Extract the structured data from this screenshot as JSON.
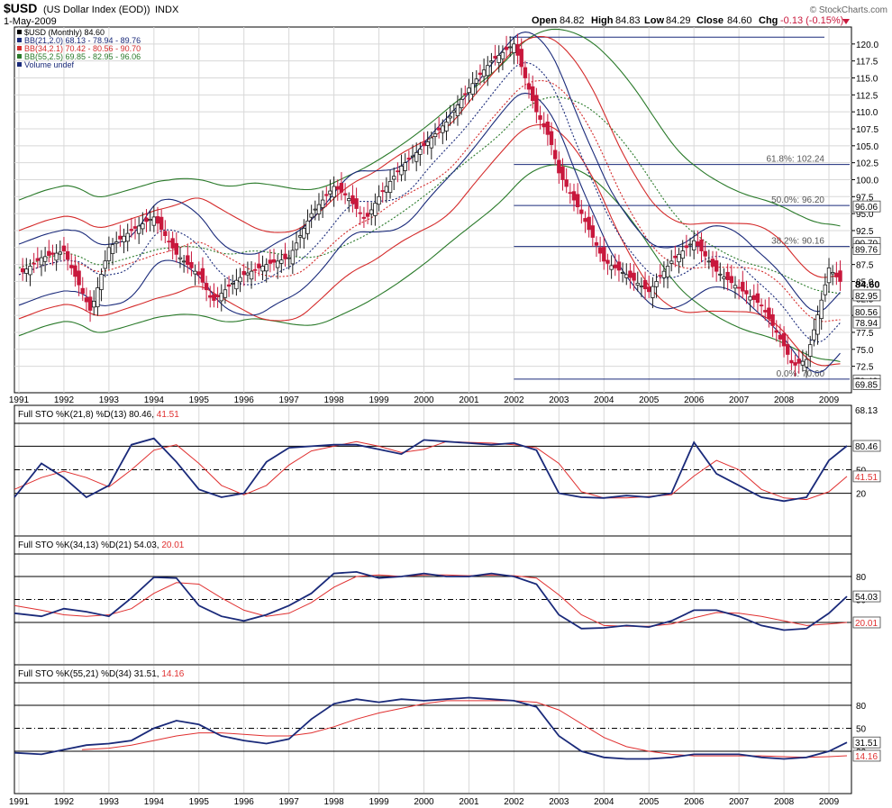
{
  "header": {
    "symbol": "$USD",
    "description": "(US Dollar Index (EOD))",
    "exchange": "INDX",
    "date": "1-May-2009",
    "open_label": "Open",
    "open": "84.82",
    "high_label": "High",
    "high": "84.83",
    "low_label": "Low",
    "low": "84.29",
    "close_label": "Close",
    "close": "84.60",
    "chg_label": "Chg",
    "chg": "-0.13 (-0.15%)",
    "copyright": "© StockCharts.com"
  },
  "legend": [
    {
      "text": "$USD (Monthly) 84.60",
      "color": "#000000"
    },
    {
      "text": "BB(21,2.0) 68.13 - 78.94 - 89.76",
      "color": "#1a2a7a"
    },
    {
      "text": "BB(34,2.1) 70.42 - 80.56 - 90.70",
      "color": "#d42a2a"
    },
    {
      "text": "BB(55,2.5) 69.85 - 82.95 - 96.06",
      "color": "#2a7a2a"
    },
    {
      "text": "Volume undef",
      "color": "#1a2a7a"
    }
  ],
  "colors": {
    "up": "#1a1a1a",
    "down": "#c8183c",
    "bb21": "#1a2a7a",
    "bb34": "#d42a2a",
    "bb55": "#2a7a2a",
    "fib": "#1a2a7a",
    "stoK": "#1a2a7a",
    "stoD": "#e03030",
    "grid": "#d8d8d8",
    "frame": "#000000"
  },
  "panels": [
    {
      "title": "Full STO %K(21,8) %D(13) 80.46,",
      "d_value": "41.51",
      "k_tag": "80.46",
      "d_tag": "41.51",
      "top_label": "68.13"
    },
    {
      "title": "Full STO %K(34,13) %D(21) 54.03,",
      "d_value": "20.01",
      "k_tag": "54.03",
      "d_tag": "20.01"
    },
    {
      "title": "Full STO %K(55,21) %D(34) 31.51,",
      "d_value": "14.16",
      "k_tag": "31.51",
      "d_tag": "14.16"
    }
  ],
  "chart_data": {
    "type": "line",
    "price_panel": {
      "ylim": [
        68.6,
        122.5
      ],
      "yticks": [
        "72.5",
        "75.0",
        "77.5",
        "80.0",
        "82.5",
        "85.0",
        "87.5",
        "90.0",
        "92.5",
        "95.0",
        "97.5",
        "100.0",
        "102.5",
        "105.0",
        "107.5",
        "110.0",
        "112.5",
        "115.0",
        "117.5",
        "120.0"
      ],
      "last_tags": [
        {
          "text": "96.06",
          "value": 96.06,
          "style": "box"
        },
        {
          "text": "90.70",
          "value": 90.7,
          "style": "box"
        },
        {
          "text": "89.76",
          "value": 89.76,
          "style": "box"
        },
        {
          "text": "84.60",
          "value": 84.6,
          "style": "bold"
        },
        {
          "text": "82.95",
          "value": 82.95,
          "style": "box"
        },
        {
          "text": "80.56",
          "value": 80.56,
          "style": "box"
        },
        {
          "text": "78.94",
          "value": 78.94,
          "style": "box"
        },
        {
          "text": "70.42",
          "value": 70.42,
          "style": "box"
        },
        {
          "text": "69.85",
          "value": 69.85,
          "style": "box"
        }
      ],
      "fibonacci": [
        {
          "label": "61.8%: 102.24",
          "value": 102.24
        },
        {
          "label": "50.0%: 96.20",
          "value": 96.2
        },
        {
          "label": "38.2%: 90.16",
          "value": 90.16
        },
        {
          "label": "0.0%: 70.60",
          "value": 70.6
        }
      ],
      "fib_top": 121.0,
      "close_series": {
        "x": [
          1991.0,
          1991.5,
          1992.0,
          1992.6,
          1993.0,
          1993.5,
          1994.0,
          1994.5,
          1995.0,
          1995.3,
          1995.7,
          1996.0,
          1996.5,
          1997.0,
          1997.5,
          1998.0,
          1998.3,
          1998.7,
          1999.0,
          1999.5,
          2000.0,
          2000.5,
          2001.0,
          2001.5,
          2002.0,
          2002.5,
          2002.8,
          2003.0,
          2003.5,
          2004.0,
          2004.5,
          2005.0,
          2005.5,
          2006.0,
          2006.5,
          2007.0,
          2007.5,
          2008.0,
          2008.2,
          2008.5,
          2008.9,
          2009.0,
          2009.3
        ],
        "values": [
          86.0,
          88.5,
          89.5,
          80.5,
          90.0,
          92.5,
          94.5,
          89.0,
          86.0,
          82.0,
          84.5,
          86.0,
          87.5,
          88.5,
          95.0,
          99.0,
          97.5,
          94.0,
          97.5,
          102.0,
          105.0,
          108.5,
          113.5,
          117.5,
          120.0,
          110.0,
          106.0,
          101.0,
          95.0,
          88.0,
          86.0,
          83.5,
          88.0,
          91.0,
          86.5,
          84.0,
          81.5,
          75.5,
          72.5,
          73.5,
          84.0,
          87.0,
          84.6
        ]
      }
    },
    "x_axis": {
      "labels": [
        "1991",
        "1992",
        "1993",
        "1994",
        "1995",
        "1996",
        "1997",
        "1998",
        "1999",
        "2000",
        "2001",
        "2002",
        "2003",
        "2004",
        "2005",
        "2006",
        "2007",
        "2008",
        "2009"
      ],
      "xlim": [
        1990.9,
        2009.5
      ]
    },
    "stochastic_panels": [
      {
        "ylim": [
          0,
          100
        ],
        "levels": [
          20,
          50,
          80
        ],
        "level_labels": [
          "20",
          "50",
          "80"
        ],
        "k": {
          "x": [
            1990.9,
            1991.5,
            1992.0,
            1992.5,
            1993.0,
            1993.5,
            1994.0,
            1994.5,
            1995.0,
            1995.5,
            1996.0,
            1996.5,
            1997.0,
            1997.5,
            1998.0,
            1998.5,
            1999.0,
            1999.5,
            2000.0,
            2000.5,
            2001.0,
            2001.5,
            2002.0,
            2002.5,
            2003.0,
            2003.5,
            2004.0,
            2004.5,
            2005.0,
            2005.5,
            2006.0,
            2006.5,
            2007.0,
            2007.5,
            2008.0,
            2008.5,
            2009.0,
            2009.4
          ],
          "values": [
            15,
            58,
            40,
            15,
            30,
            82,
            90,
            60,
            25,
            15,
            20,
            60,
            78,
            80,
            82,
            82,
            76,
            70,
            88,
            86,
            84,
            82,
            84,
            75,
            20,
            15,
            14,
            17,
            15,
            20,
            85,
            45,
            30,
            15,
            10,
            15,
            62,
            80.46
          ]
        },
        "d": {
          "x": [
            1990.9,
            1991.5,
            1992.0,
            1992.5,
            1993.0,
            1993.5,
            1994.0,
            1994.5,
            1995.0,
            1995.5,
            1996.0,
            1996.5,
            1997.0,
            1997.5,
            1998.0,
            1998.5,
            1999.0,
            1999.5,
            2000.0,
            2000.5,
            2001.0,
            2001.5,
            2002.0,
            2002.5,
            2003.0,
            2003.5,
            2004.0,
            2004.5,
            2005.0,
            2005.5,
            2006.0,
            2006.5,
            2007.0,
            2007.5,
            2008.0,
            2008.5,
            2009.0,
            2009.4
          ],
          "values": [
            25,
            40,
            48,
            40,
            28,
            50,
            75,
            82,
            58,
            30,
            18,
            30,
            56,
            74,
            80,
            86,
            80,
            72,
            76,
            86,
            85,
            84,
            82,
            78,
            58,
            22,
            14,
            14,
            16,
            18,
            42,
            62,
            50,
            25,
            14,
            12,
            22,
            41.51
          ]
        }
      },
      {
        "ylim": [
          0,
          100
        ],
        "levels": [
          20,
          50,
          80
        ],
        "level_labels": [
          "20",
          "50",
          "80"
        ],
        "k": {
          "x": [
            1990.9,
            1991.5,
            1992.0,
            1992.5,
            1993.0,
            1993.5,
            1994.0,
            1994.5,
            1995.0,
            1995.5,
            1996.0,
            1996.5,
            1997.0,
            1997.5,
            1998.0,
            1998.5,
            1999.0,
            1999.5,
            2000.0,
            2000.5,
            2001.0,
            2001.5,
            2002.0,
            2002.5,
            2003.0,
            2003.5,
            2004.0,
            2004.5,
            2005.0,
            2005.5,
            2006.0,
            2006.5,
            2007.0,
            2007.5,
            2008.0,
            2008.5,
            2009.0,
            2009.4
          ],
          "values": [
            32,
            28,
            38,
            34,
            28,
            52,
            79,
            78,
            42,
            28,
            22,
            30,
            42,
            58,
            84,
            86,
            78,
            80,
            84,
            80,
            80,
            84,
            80,
            70,
            30,
            12,
            13,
            16,
            14,
            22,
            36,
            36,
            28,
            16,
            10,
            12,
            32,
            54.03
          ]
        },
        "d": {
          "x": [
            1990.9,
            1991.5,
            1992.0,
            1992.5,
            1993.0,
            1993.5,
            1994.0,
            1994.5,
            1995.0,
            1995.5,
            1996.0,
            1996.5,
            1997.0,
            1997.5,
            1998.0,
            1998.5,
            1999.0,
            1999.5,
            2000.0,
            2000.5,
            2001.0,
            2001.5,
            2002.0,
            2002.5,
            2003.0,
            2003.5,
            2004.0,
            2004.5,
            2005.0,
            2005.5,
            2006.0,
            2006.5,
            2007.0,
            2007.5,
            2008.0,
            2008.5,
            2009.0,
            2009.4
          ],
          "values": [
            42,
            36,
            30,
            28,
            30,
            38,
            58,
            72,
            70,
            52,
            36,
            28,
            32,
            46,
            66,
            80,
            82,
            80,
            82,
            82,
            81,
            82,
            81,
            78,
            56,
            30,
            16,
            15,
            15,
            18,
            26,
            33,
            32,
            28,
            22,
            16,
            18,
            20.01
          ]
        }
      },
      {
        "ylim": [
          0,
          100
        ],
        "levels": [
          20,
          50,
          80
        ],
        "level_labels": [
          "20",
          "50",
          "80"
        ],
        "k": {
          "x": [
            1990.9,
            1991.5,
            1992.0,
            1992.5,
            1993.0,
            1993.5,
            1994.0,
            1994.5,
            1995.0,
            1995.5,
            1996.0,
            1996.5,
            1997.0,
            1997.5,
            1998.0,
            1998.5,
            1999.0,
            1999.5,
            2000.0,
            2000.5,
            2001.0,
            2001.5,
            2002.0,
            2002.5,
            2003.0,
            2003.5,
            2004.0,
            2004.5,
            2005.0,
            2005.5,
            2006.0,
            2006.5,
            2007.0,
            2007.5,
            2008.0,
            2008.5,
            2009.0,
            2009.4
          ],
          "values": [
            18,
            16,
            22,
            28,
            30,
            34,
            50,
            60,
            55,
            40,
            34,
            30,
            36,
            62,
            82,
            88,
            84,
            88,
            86,
            88,
            90,
            88,
            86,
            78,
            40,
            20,
            12,
            10,
            10,
            12,
            16,
            16,
            16,
            12,
            10,
            12,
            20,
            31.51
          ]
        },
        "d": {
          "x": [
            1992.4,
            1993.0,
            1993.5,
            1994.0,
            1994.5,
            1995.0,
            1995.5,
            1996.0,
            1996.5,
            1997.0,
            1997.5,
            1998.0,
            1998.5,
            1999.0,
            1999.5,
            2000.0,
            2000.5,
            2001.0,
            2001.5,
            2002.0,
            2002.5,
            2003.0,
            2003.5,
            2004.0,
            2004.5,
            2005.0,
            2005.5,
            2006.0,
            2006.5,
            2007.0,
            2007.5,
            2008.0,
            2008.5,
            2009.0,
            2009.4
          ],
          "values": [
            22,
            24,
            28,
            34,
            40,
            44,
            44,
            42,
            40,
            40,
            44,
            52,
            62,
            70,
            76,
            82,
            86,
            86,
            86,
            86,
            84,
            74,
            56,
            38,
            26,
            20,
            16,
            14,
            14,
            14,
            14,
            13,
            12,
            13,
            14.16
          ]
        }
      }
    ]
  }
}
